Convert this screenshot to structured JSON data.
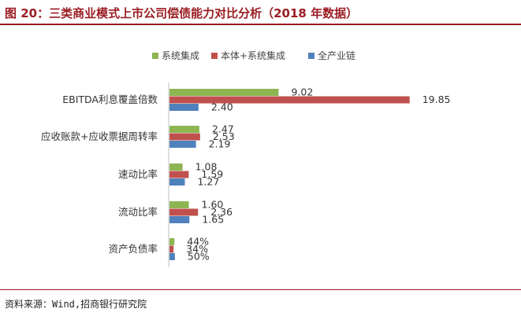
{
  "header": {
    "title": "图 20：三类商业模式上市公司偿债能力对比分析（2018 年数据）"
  },
  "footer": {
    "source": "资料来源：Wind,招商银行研究院"
  },
  "chart_data": {
    "type": "bar",
    "orientation": "horizontal",
    "title": "",
    "legend_position": "top",
    "categories": [
      "EBITDA利息覆盖倍数",
      "应收账款+应收票据周转率",
      "速动比率",
      "流动比率",
      "资产负债率"
    ],
    "series": [
      {
        "name": "系统集成",
        "color": "#8db652",
        "values": [
          9.02,
          2.47,
          1.08,
          1.6,
          0.44
        ],
        "labels": [
          "9.02",
          "2.47",
          "1.08",
          "1.60",
          "44%"
        ]
      },
      {
        "name": "本体+系统集成",
        "color": "#c0504d",
        "values": [
          19.85,
          2.53,
          1.59,
          2.36,
          0.34
        ],
        "labels": [
          "19.85",
          "2.53",
          "1.59",
          "2.36",
          "34%"
        ]
      },
      {
        "name": "全产业链",
        "color": "#4f81bd",
        "values": [
          2.4,
          2.19,
          1.27,
          1.65,
          0.5
        ],
        "labels": [
          "2.40",
          "2.19",
          "1.27",
          "1.65",
          "50%"
        ]
      }
    ]
  }
}
